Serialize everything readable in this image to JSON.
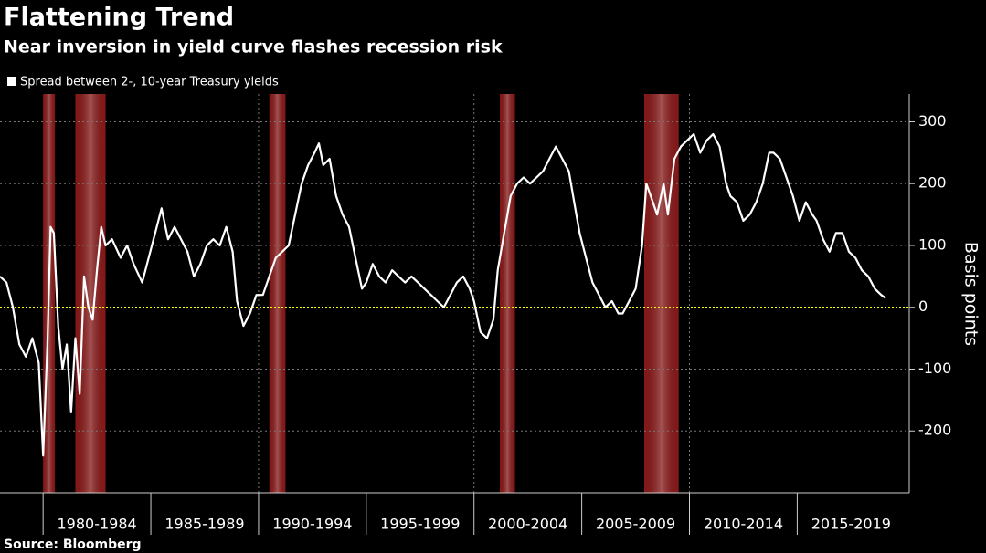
{
  "chart_data": {
    "type": "line",
    "title": "Flattening Trend",
    "subtitle": "Near inversion in yield curve flashes recession risk",
    "y_label": "Basis points",
    "source": "Source: Bloomberg",
    "xlim": [
      1978.0,
      2020.2
    ],
    "ylim": [
      -300,
      345
    ],
    "yticks": [
      -200,
      -100,
      0,
      100,
      200,
      300
    ],
    "xticks": [
      {
        "value": 1980,
        "label": "1980-1984"
      },
      {
        "value": 1985,
        "label": "1985-1989"
      },
      {
        "value": 1990,
        "label": "1990-1994"
      },
      {
        "value": 1995,
        "label": "1995-1999"
      },
      {
        "value": 2000,
        "label": "2000-2004"
      },
      {
        "value": 2005,
        "label": "2005-2009"
      },
      {
        "value": 2010,
        "label": "2010-2014"
      },
      {
        "value": 2015,
        "label": "2015-2019"
      }
    ],
    "xgrid": [
      1990,
      2000,
      2010
    ],
    "grid": true,
    "zero_line_color": "#ffff00",
    "recessions": [
      [
        1980.0,
        1980.55
      ],
      [
        1981.5,
        1982.9
      ],
      [
        1990.5,
        1991.25
      ],
      [
        2001.2,
        2001.9
      ],
      [
        2007.9,
        2009.5
      ]
    ],
    "recession_color": "#b22222",
    "x": [
      1978.0,
      1978.3,
      1978.6,
      1978.9,
      1979.2,
      1979.5,
      1979.8,
      1980.0,
      1980.2,
      1980.35,
      1980.5,
      1980.7,
      1980.9,
      1981.1,
      1981.3,
      1981.5,
      1981.7,
      1981.9,
      1982.1,
      1982.3,
      1982.5,
      1982.7,
      1982.9,
      1983.2,
      1983.6,
      1983.9,
      1984.2,
      1984.6,
      1984.9,
      1985.2,
      1985.5,
      1985.8,
      1986.1,
      1986.4,
      1986.7,
      1987.0,
      1987.3,
      1987.6,
      1987.9,
      1988.2,
      1988.5,
      1988.8,
      1989.0,
      1989.3,
      1989.6,
      1989.9,
      1990.2,
      1990.5,
      1990.8,
      1991.1,
      1991.4,
      1991.7,
      1992.0,
      1992.3,
      1992.6,
      1992.8,
      1993.0,
      1993.3,
      1993.6,
      1993.9,
      1994.2,
      1994.5,
      1994.8,
      1995.0,
      1995.3,
      1995.6,
      1995.9,
      1996.2,
      1996.5,
      1996.8,
      1997.1,
      1997.4,
      1997.7,
      1998.0,
      1998.3,
      1998.6,
      1998.9,
      1999.2,
      1999.5,
      1999.8,
      2000.0,
      2000.3,
      2000.6,
      2000.9,
      2001.1,
      2001.4,
      2001.7,
      2002.0,
      2002.3,
      2002.6,
      2002.9,
      2003.2,
      2003.5,
      2003.8,
      2004.1,
      2004.4,
      2004.7,
      2004.9,
      2005.2,
      2005.5,
      2005.8,
      2006.1,
      2006.4,
      2006.7,
      2006.9,
      2007.2,
      2007.5,
      2007.8,
      2008.0,
      2008.2,
      2008.5,
      2008.8,
      2009.0,
      2009.3,
      2009.6,
      2009.9,
      2010.2,
      2010.5,
      2010.8,
      2011.1,
      2011.4,
      2011.7,
      2011.9,
      2012.2,
      2012.5,
      2012.8,
      2013.1,
      2013.4,
      2013.7,
      2013.9,
      2014.2,
      2014.5,
      2014.8,
      2015.1,
      2015.4,
      2015.7,
      2015.9,
      2016.2,
      2016.5,
      2016.8,
      2017.1,
      2017.4,
      2017.7,
      2018.0,
      2018.3,
      2018.6,
      2018.9,
      2019.1
    ],
    "series": [
      {
        "name": "Spread between 2-, 10-year Treasury yields",
        "color": "#ffffff",
        "values": [
          50,
          40,
          0,
          -60,
          -80,
          -50,
          -90,
          -240,
          -60,
          130,
          120,
          -30,
          -100,
          -60,
          -170,
          -50,
          -140,
          50,
          0,
          -20,
          60,
          130,
          100,
          110,
          80,
          100,
          70,
          40,
          80,
          120,
          160,
          110,
          130,
          110,
          90,
          50,
          70,
          100,
          110,
          100,
          130,
          90,
          10,
          -30,
          -10,
          20,
          20,
          50,
          80,
          90,
          100,
          150,
          200,
          230,
          250,
          265,
          230,
          240,
          180,
          150,
          130,
          80,
          30,
          40,
          70,
          50,
          40,
          60,
          50,
          40,
          50,
          40,
          30,
          20,
          10,
          0,
          20,
          40,
          50,
          30,
          10,
          -40,
          -50,
          -20,
          60,
          120,
          180,
          200,
          210,
          200,
          210,
          220,
          240,
          260,
          240,
          220,
          160,
          120,
          80,
          40,
          20,
          0,
          10,
          -10,
          -10,
          10,
          30,
          100,
          200,
          180,
          150,
          200,
          150,
          240,
          260,
          270,
          280,
          250,
          270,
          280,
          260,
          200,
          180,
          170,
          140,
          150,
          170,
          200,
          250,
          250,
          240,
          210,
          180,
          140,
          170,
          150,
          140,
          110,
          90,
          120,
          120,
          90,
          80,
          60,
          50,
          30,
          20,
          15
        ]
      }
    ]
  }
}
